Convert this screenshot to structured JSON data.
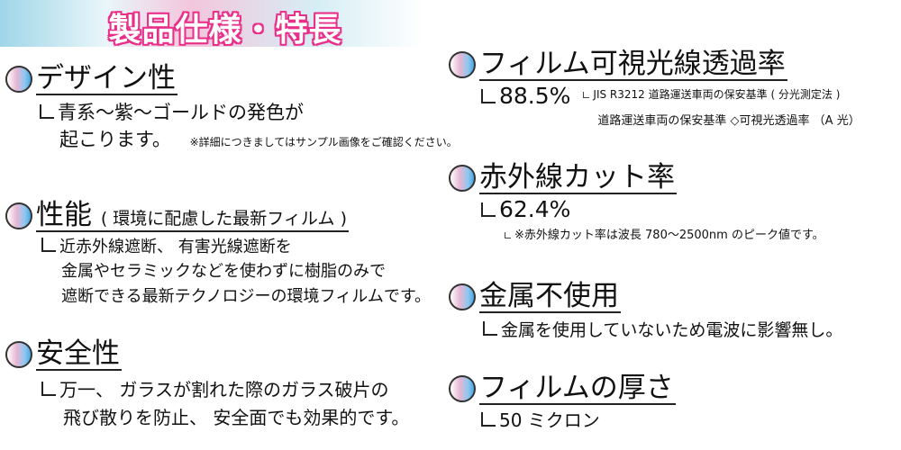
{
  "header": {
    "title": "製品仕様・特長"
  },
  "left": [
    {
      "heading": "デザイン性",
      "lines": [
        "青系～紫～ゴールドの発色が",
        "起こります。"
      ],
      "note": "※詳細につきましてはサンプル画像をご確認ください。"
    },
    {
      "heading": "性能",
      "heading_sub": "( 環境に配慮した最新フィルム )",
      "lines": [
        "近赤外線遮断、 有害光線遮断を",
        "金属やセラミックなどを使わずに樹脂のみで",
        "遮断できる最新テクノロジーの環境フィルムです。"
      ]
    },
    {
      "heading": "安全性",
      "lines": [
        "万一、 ガラスが割れた際のガラス破片の",
        "飛び散りを防止、 安全面でも効果的です。"
      ]
    }
  ],
  "right": [
    {
      "heading": "フィルム可視光線透過率",
      "value": "88.5%",
      "notes": [
        "JIS R3212 道路運送車両の保安基準 ( 分光測定法 )",
        "道路運送車両の保安基準 ◇可視光透過率 （A 光）"
      ]
    },
    {
      "heading": "赤外線カット率",
      "value": "62.4%",
      "notes": [
        "※赤外線カット率は波長 780～2500nm のピーク値です。"
      ]
    },
    {
      "heading": "金属不使用",
      "line": "金属を使用していないため電波に影響無し。"
    },
    {
      "heading": "フィルムの厚さ",
      "value": "50 ミクロン"
    }
  ]
}
